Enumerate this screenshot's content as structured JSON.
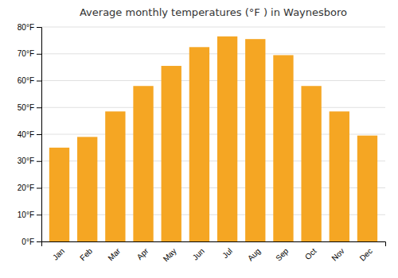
{
  "chart_data": {
    "type": "bar",
    "title": "Average monthly temperatures (°F ) in Waynesboro",
    "categories": [
      "Jan",
      "Feb",
      "Mar",
      "Apr",
      "May",
      "Jun",
      "Jul",
      "Aug",
      "Sep",
      "Oct",
      "Nov",
      "Dec"
    ],
    "values": [
      35,
      39,
      48.5,
      58,
      65.5,
      72.5,
      76.5,
      75.5,
      69.5,
      58,
      48.5,
      39.5
    ],
    "color": "#F5A623",
    "ylim": [
      0,
      80
    ],
    "yticks": [
      {
        "value": 0,
        "label": "0°F"
      },
      {
        "value": 10,
        "label": "10°F"
      },
      {
        "value": 20,
        "label": "20°F"
      },
      {
        "value": 30,
        "label": "30°F"
      },
      {
        "value": 40,
        "label": "40°F"
      },
      {
        "value": 50,
        "label": "50°F"
      },
      {
        "value": 60,
        "label": "60°F"
      },
      {
        "value": 70,
        "label": "70°F"
      },
      {
        "value": 80,
        "label": "80°F"
      }
    ],
    "grid": true
  }
}
